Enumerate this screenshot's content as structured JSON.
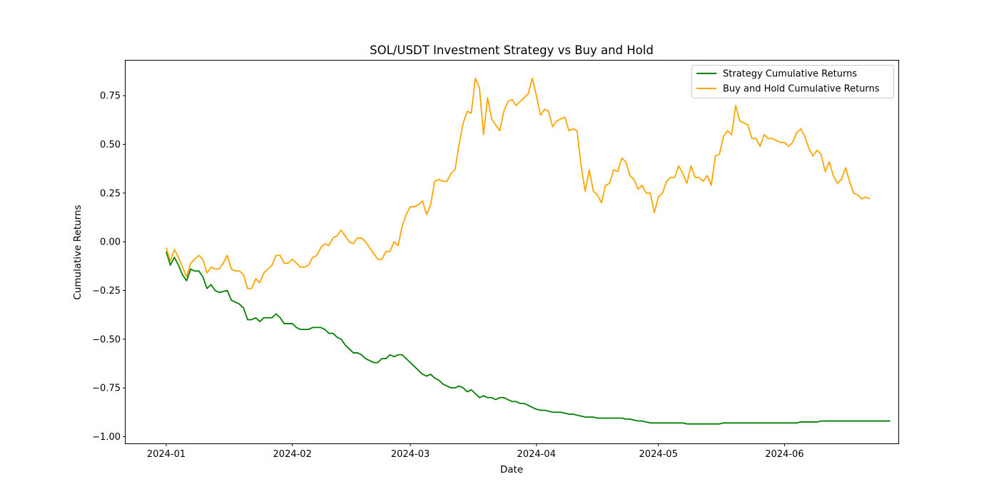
{
  "chart_data": {
    "type": "line",
    "title": "SOL/USDT Investment Strategy vs Buy and Hold",
    "xlabel": "Date",
    "ylabel": "Cumulative Returns",
    "x_start": "2024-01-01",
    "x_end": "2024-06-20",
    "xlim": [
      "2023-12-22",
      "2024-06-29"
    ],
    "ylim": [
      -1.035,
      0.93
    ],
    "x_ticks": [
      {
        "date": "2024-01-01",
        "label": "2024-01"
      },
      {
        "date": "2024-02-01",
        "label": "2024-02"
      },
      {
        "date": "2024-03-01",
        "label": "2024-03"
      },
      {
        "date": "2024-04-01",
        "label": "2024-04"
      },
      {
        "date": "2024-05-01",
        "label": "2024-05"
      },
      {
        "date": "2024-06-01",
        "label": "2024-06"
      }
    ],
    "y_ticks": [
      {
        "value": 0.75,
        "label": "0.75"
      },
      {
        "value": 0.5,
        "label": "0.50"
      },
      {
        "value": 0.25,
        "label": "0.25"
      },
      {
        "value": 0.0,
        "label": "0.00"
      },
      {
        "value": -0.25,
        "label": "−0.25"
      },
      {
        "value": -0.5,
        "label": "−0.50"
      },
      {
        "value": -0.75,
        "label": "−0.75"
      },
      {
        "value": -1.0,
        "label": "−1.00"
      }
    ],
    "grid": false,
    "legend_position": "upper right",
    "series": [
      {
        "name": "Strategy Cumulative Returns",
        "color": "#008000",
        "values": [
          -0.05,
          -0.12,
          -0.08,
          -0.12,
          -0.17,
          -0.2,
          -0.14,
          -0.15,
          -0.15,
          -0.18,
          -0.24,
          -0.22,
          -0.25,
          -0.26,
          -0.255,
          -0.25,
          -0.3,
          -0.31,
          -0.32,
          -0.34,
          -0.4,
          -0.4,
          -0.39,
          -0.41,
          -0.39,
          -0.39,
          -0.39,
          -0.37,
          -0.39,
          -0.42,
          -0.42,
          -0.42,
          -0.44,
          -0.45,
          -0.45,
          -0.45,
          -0.44,
          -0.44,
          -0.44,
          -0.45,
          -0.47,
          -0.47,
          -0.49,
          -0.5,
          -0.53,
          -0.55,
          -0.57,
          -0.57,
          -0.58,
          -0.6,
          -0.61,
          -0.62,
          -0.62,
          -0.6,
          -0.6,
          -0.58,
          -0.59,
          -0.58,
          -0.58,
          -0.6,
          -0.62,
          -0.64,
          -0.66,
          -0.68,
          -0.69,
          -0.68,
          -0.7,
          -0.71,
          -0.73,
          -0.74,
          -0.75,
          -0.75,
          -0.74,
          -0.75,
          -0.77,
          -0.76,
          -0.78,
          -0.8,
          -0.79,
          -0.8,
          -0.8,
          -0.81,
          -0.8,
          -0.8,
          -0.81,
          -0.82,
          -0.82,
          -0.83,
          -0.83,
          -0.84,
          -0.85,
          -0.86,
          -0.865,
          -0.865,
          -0.87,
          -0.875,
          -0.875,
          -0.875,
          -0.88,
          -0.885,
          -0.885,
          -0.89,
          -0.895,
          -0.9,
          -0.9,
          -0.9,
          -0.905,
          -0.905,
          -0.905,
          -0.905,
          -0.905,
          -0.905,
          -0.905,
          -0.91,
          -0.91,
          -0.915,
          -0.92,
          -0.92,
          -0.925,
          -0.93,
          -0.93,
          -0.93,
          -0.93,
          -0.93,
          -0.93,
          -0.93,
          -0.93,
          -0.93,
          -0.935,
          -0.935,
          -0.935,
          -0.935,
          -0.935,
          -0.935,
          -0.935,
          -0.935,
          -0.935,
          -0.93,
          -0.93,
          -0.93,
          -0.93,
          -0.93,
          -0.93,
          -0.93,
          -0.93,
          -0.93,
          -0.93,
          -0.93,
          -0.93,
          -0.93,
          -0.93,
          -0.93,
          -0.93,
          -0.93,
          -0.93,
          -0.93,
          -0.925,
          -0.925,
          -0.925,
          -0.925,
          -0.925,
          -0.92,
          -0.92,
          -0.92,
          -0.92,
          -0.92,
          -0.92,
          -0.92,
          -0.92,
          -0.92,
          -0.92,
          -0.92,
          -0.92,
          -0.92,
          -0.92,
          -0.92,
          -0.92,
          -0.92,
          -0.92
        ]
      },
      {
        "name": "Buy and Hold Cumulative Returns",
        "color": "#FFA500",
        "values": [
          -0.03,
          -0.1,
          -0.04,
          -0.08,
          -0.13,
          -0.18,
          -0.11,
          -0.09,
          -0.07,
          -0.09,
          -0.16,
          -0.13,
          -0.14,
          -0.14,
          -0.11,
          -0.07,
          -0.14,
          -0.15,
          -0.15,
          -0.17,
          -0.24,
          -0.24,
          -0.19,
          -0.21,
          -0.16,
          -0.14,
          -0.12,
          -0.07,
          -0.07,
          -0.11,
          -0.11,
          -0.09,
          -0.11,
          -0.13,
          -0.13,
          -0.12,
          -0.08,
          -0.07,
          -0.03,
          -0.01,
          -0.02,
          0.02,
          0.03,
          0.06,
          0.03,
          0.0,
          -0.01,
          0.02,
          0.02,
          0.0,
          -0.03,
          -0.06,
          -0.09,
          -0.09,
          -0.05,
          -0.05,
          0.0,
          -0.02,
          0.08,
          0.14,
          0.18,
          0.18,
          0.19,
          0.21,
          0.14,
          0.19,
          0.31,
          0.32,
          0.31,
          0.31,
          0.35,
          0.37,
          0.5,
          0.61,
          0.67,
          0.66,
          0.84,
          0.79,
          0.55,
          0.74,
          0.63,
          0.6,
          0.57,
          0.67,
          0.72,
          0.73,
          0.7,
          0.72,
          0.74,
          0.76,
          0.84,
          0.75,
          0.65,
          0.68,
          0.67,
          0.59,
          0.62,
          0.63,
          0.64,
          0.57,
          0.58,
          0.57,
          0.39,
          0.26,
          0.37,
          0.26,
          0.24,
          0.2,
          0.29,
          0.3,
          0.37,
          0.36,
          0.43,
          0.41,
          0.34,
          0.32,
          0.27,
          0.29,
          0.25,
          0.25,
          0.15,
          0.23,
          0.25,
          0.31,
          0.33,
          0.33,
          0.39,
          0.35,
          0.3,
          0.39,
          0.33,
          0.33,
          0.31,
          0.34,
          0.29,
          0.44,
          0.45,
          0.54,
          0.57,
          0.55,
          0.7,
          0.62,
          0.61,
          0.6,
          0.53,
          0.53,
          0.49,
          0.55,
          0.53,
          0.53,
          0.52,
          0.51,
          0.51,
          0.49,
          0.51,
          0.56,
          0.58,
          0.54,
          0.48,
          0.44,
          0.47,
          0.45,
          0.36,
          0.41,
          0.34,
          0.3,
          0.32,
          0.38,
          0.31,
          0.25,
          0.24,
          0.22,
          0.23,
          0.22
        ]
      }
    ]
  }
}
